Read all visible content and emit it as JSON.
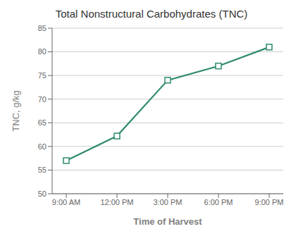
{
  "chart_data": {
    "type": "line",
    "title": "Total Nonstructural Carbohydrates (TNC)",
    "x_label": "Time of Harvest",
    "y_label": "TNC, g/kg",
    "categories": [
      "9:00 AM",
      "12:00 PM",
      "3:00 PM",
      "6:00 PM",
      "9:00 PM"
    ],
    "values": [
      57.0,
      62.2,
      74.0,
      77.0,
      81.0
    ],
    "color": "#2E8B6A",
    "marker": "square",
    "ylim": [
      50,
      85
    ],
    "yticks": [
      50,
      55,
      60,
      65,
      70,
      75,
      80,
      85
    ],
    "grid": true
  }
}
